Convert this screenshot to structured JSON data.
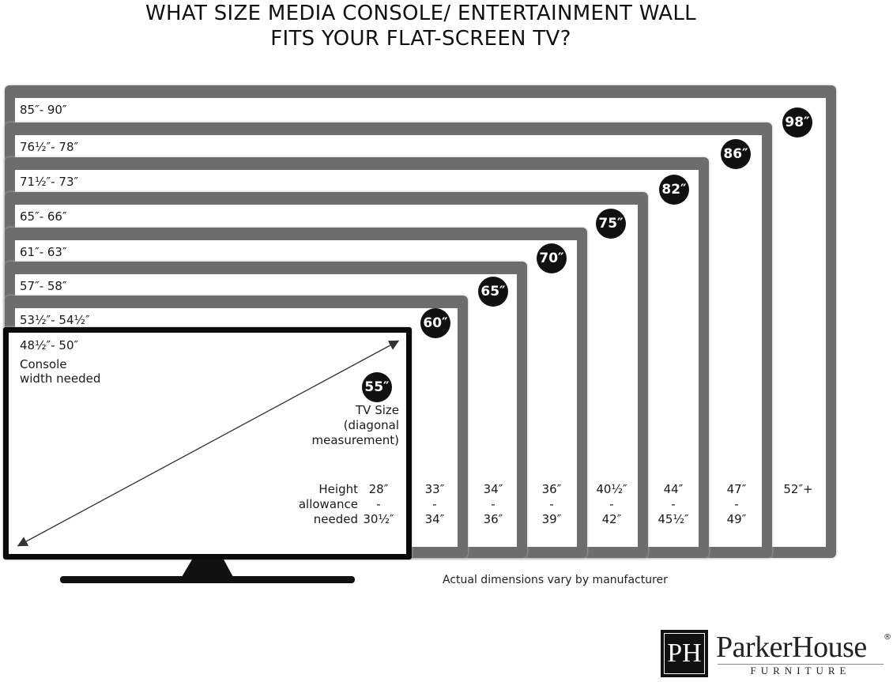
{
  "title": {
    "line1": "WHAT SIZE MEDIA CONSOLE/ ENTERTAINMENT WALL",
    "line2": "FITS YOUR FLAT-SCREEN TV?"
  },
  "colors": {
    "frame": "#6d6d6d",
    "tv": "#0a0a0a",
    "badge": "#111111"
  },
  "frames": [
    {
      "tv_size": "98″",
      "console_width": "85″- 90″",
      "height_top": "52″+",
      "height_sep": "",
      "height_bottom": ""
    },
    {
      "tv_size": "86″",
      "console_width": "76½″- 78″",
      "height_top": "47″",
      "height_sep": "-",
      "height_bottom": "49″"
    },
    {
      "tv_size": "82″",
      "console_width": "71½″- 73″",
      "height_top": "44″",
      "height_sep": "-",
      "height_bottom": "45½″"
    },
    {
      "tv_size": "75″",
      "console_width": "65″- 66″",
      "height_top": "40½″",
      "height_sep": "-",
      "height_bottom": "42″"
    },
    {
      "tv_size": "70″",
      "console_width": "61″- 63″",
      "height_top": "36″",
      "height_sep": "-",
      "height_bottom": "39″"
    },
    {
      "tv_size": "65″",
      "console_width": "57″- 58″",
      "height_top": "34″",
      "height_sep": "-",
      "height_bottom": "36″"
    },
    {
      "tv_size": "60″",
      "console_width": "53½″- 54½″",
      "height_top": "33″",
      "height_sep": "-",
      "height_bottom": "34″"
    },
    {
      "tv_size": "55″",
      "console_width": "48½″- 50″",
      "height_top": "28″",
      "height_sep": "-",
      "height_bottom": "30½″"
    }
  ],
  "labels": {
    "console_line1": "Console",
    "console_line2": "width needed",
    "tv_size_line1": "TV Size",
    "tv_size_line2": "(diagonal",
    "tv_size_line3": "measurement)",
    "height_line1": "Height",
    "height_line2": "allowance",
    "height_line3": "needed"
  },
  "footnote": "Actual dimensions vary by manufacturer",
  "logo": {
    "brand": "ParkerHouse",
    "sub": "FURNITURE",
    "mark": "PH",
    "registered": "®"
  }
}
